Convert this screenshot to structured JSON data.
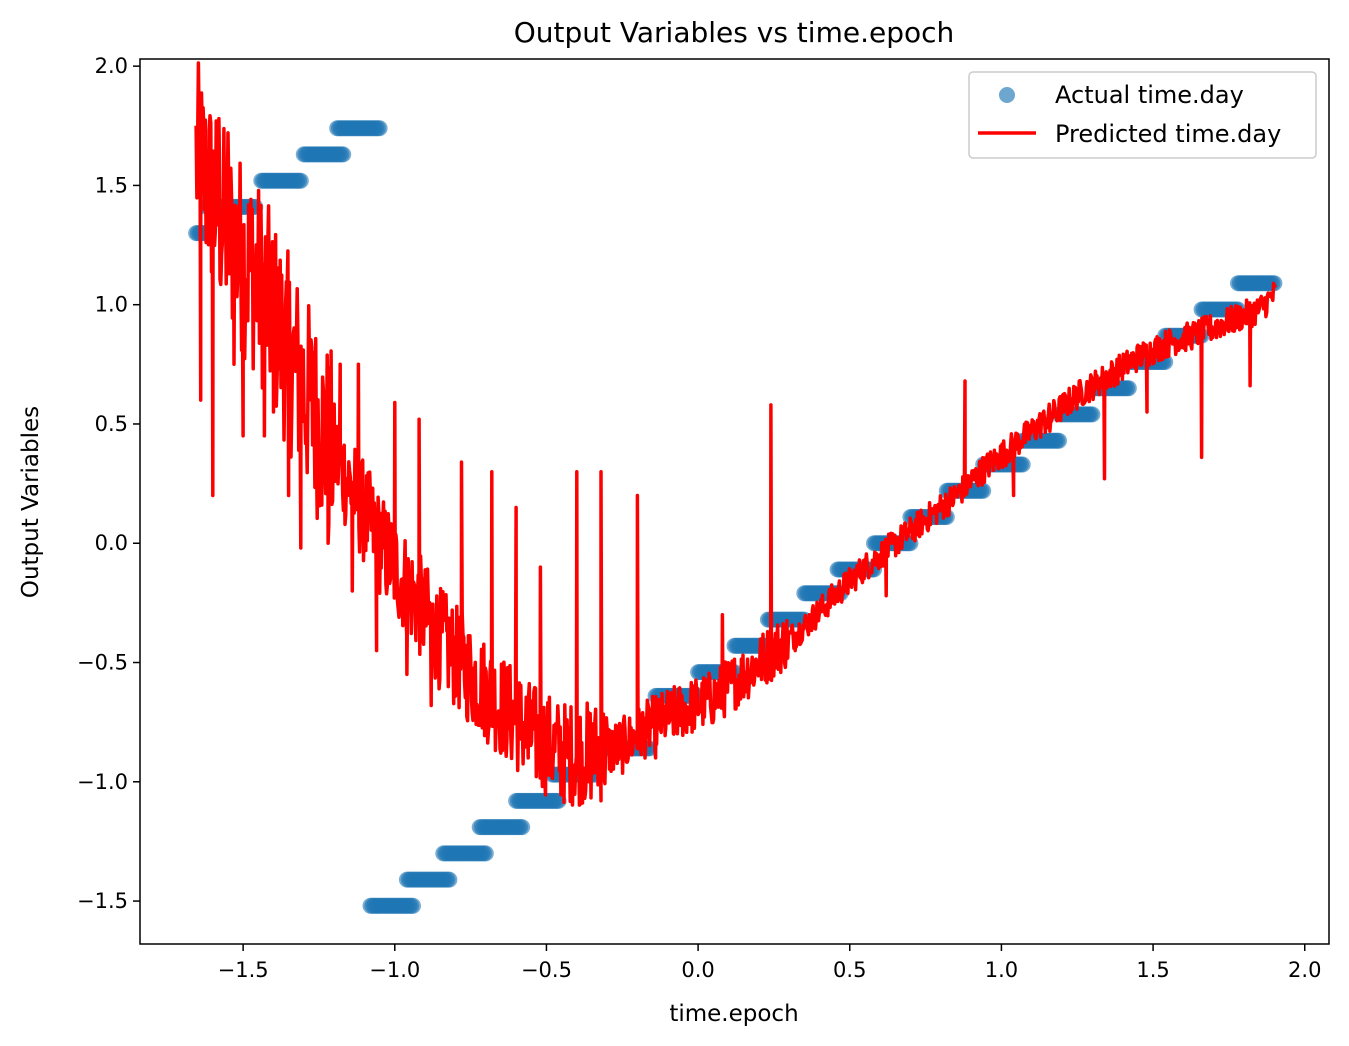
{
  "chart_data": {
    "type": "scatter",
    "title": "Output Variables vs time.epoch",
    "xlabel": "time.epoch",
    "ylabel": "Output Variables",
    "xlim": [
      -1.84,
      2.08
    ],
    "ylim": [
      -1.68,
      2.03
    ],
    "xticks": [
      -1.5,
      -1.0,
      -0.5,
      0.0,
      0.5,
      1.0,
      1.5,
      2.0
    ],
    "yticks": [
      -1.5,
      -1.0,
      -0.5,
      0.0,
      0.5,
      1.0,
      1.5,
      2.0
    ],
    "xtick_labels": [
      "−1.5",
      "−1.0",
      "−0.5",
      "0.0",
      "0.5",
      "1.0",
      "1.5",
      "2.0"
    ],
    "ytick_labels": [
      "−1.5",
      "−1.0",
      "−0.5",
      "0.0",
      "0.5",
      "1.0",
      "1.5",
      "2.0"
    ],
    "legend_position": "top-right",
    "grid": false,
    "series": [
      {
        "name": "Actual time.day",
        "kind": "scatter",
        "color": "#1f77b4",
        "segments": [
          {
            "x0": -1.655,
            "x1": -1.62,
            "y": 1.3
          },
          {
            "x0": -1.62,
            "x1": -1.46,
            "y": 1.41
          },
          {
            "x0": -1.44,
            "x1": -1.31,
            "y": 1.52
          },
          {
            "x0": -1.3,
            "x1": -1.17,
            "y": 1.63
          },
          {
            "x0": -1.19,
            "x1": -1.05,
            "y": 1.74
          },
          {
            "x0": -1.08,
            "x1": -0.94,
            "y": -1.52
          },
          {
            "x0": -0.96,
            "x1": -0.82,
            "y": -1.41
          },
          {
            "x0": -0.84,
            "x1": -0.7,
            "y": -1.3
          },
          {
            "x0": -0.72,
            "x1": -0.58,
            "y": -1.19
          },
          {
            "x0": -0.6,
            "x1": -0.46,
            "y": -1.08
          },
          {
            "x0": -0.48,
            "x1": -0.34,
            "y": -0.97
          },
          {
            "x0": -0.3,
            "x1": -0.16,
            "y": -0.86
          },
          {
            "x0": -0.14,
            "x1": 0.0,
            "y": -0.64
          },
          {
            "x0": 0.0,
            "x1": 0.12,
            "y": -0.54
          },
          {
            "x0": 0.12,
            "x1": 0.24,
            "y": -0.43
          },
          {
            "x0": 0.23,
            "x1": 0.35,
            "y": -0.32
          },
          {
            "x0": 0.35,
            "x1": 0.47,
            "y": -0.21
          },
          {
            "x0": 0.46,
            "x1": 0.58,
            "y": -0.11
          },
          {
            "x0": 0.58,
            "x1": 0.7,
            "y": 0.0
          },
          {
            "x0": 0.7,
            "x1": 0.82,
            "y": 0.11
          },
          {
            "x0": 0.82,
            "x1": 0.94,
            "y": 0.22
          },
          {
            "x0": 0.94,
            "x1": 1.07,
            "y": 0.33
          },
          {
            "x0": 1.07,
            "x1": 1.19,
            "y": 0.43
          },
          {
            "x0": 1.19,
            "x1": 1.3,
            "y": 0.54
          },
          {
            "x0": 1.3,
            "x1": 1.42,
            "y": 0.65
          },
          {
            "x0": 1.42,
            "x1": 1.54,
            "y": 0.76
          },
          {
            "x0": 1.54,
            "x1": 1.66,
            "y": 0.87
          },
          {
            "x0": 1.66,
            "x1": 1.78,
            "y": 0.98
          },
          {
            "x0": 1.78,
            "x1": 1.9,
            "y": 1.09
          }
        ]
      },
      {
        "name": "Predicted time.day",
        "kind": "line",
        "color": "#ff0000",
        "x_range": [
          -1.655,
          1.905
        ],
        "trend": [
          [
            -1.655,
            1.62
          ],
          [
            -1.55,
            1.3
          ],
          [
            -1.45,
            1.1
          ],
          [
            -1.35,
            0.8
          ],
          [
            -1.25,
            0.5
          ],
          [
            -1.15,
            0.25
          ],
          [
            -1.05,
            0.0
          ],
          [
            -0.95,
            -0.2
          ],
          [
            -0.85,
            -0.4
          ],
          [
            -0.75,
            -0.55
          ],
          [
            -0.65,
            -0.68
          ],
          [
            -0.55,
            -0.8
          ],
          [
            -0.45,
            -0.88
          ],
          [
            -0.35,
            -0.88
          ],
          [
            -0.25,
            -0.85
          ],
          [
            -0.15,
            -0.76
          ],
          [
            -0.05,
            -0.7
          ],
          [
            0.05,
            -0.65
          ],
          [
            0.15,
            -0.55
          ],
          [
            0.25,
            -0.45
          ],
          [
            0.35,
            -0.35
          ],
          [
            0.45,
            -0.22
          ],
          [
            0.55,
            -0.1
          ],
          [
            0.65,
            0.0
          ],
          [
            0.75,
            0.1
          ],
          [
            0.85,
            0.2
          ],
          [
            0.95,
            0.32
          ],
          [
            1.05,
            0.42
          ],
          [
            1.15,
            0.52
          ],
          [
            1.25,
            0.62
          ],
          [
            1.35,
            0.7
          ],
          [
            1.45,
            0.78
          ],
          [
            1.55,
            0.84
          ],
          [
            1.65,
            0.88
          ],
          [
            1.75,
            0.93
          ],
          [
            1.85,
            0.98
          ],
          [
            1.905,
            1.05
          ]
        ],
        "spikes": [
          [
            -1.64,
            0.6
          ],
          [
            -1.6,
            0.2
          ],
          [
            -1.58,
            1.78
          ],
          [
            -1.55,
            1.72
          ],
          [
            -1.53,
            0.75
          ],
          [
            -1.5,
            0.45
          ],
          [
            -1.47,
            1.4
          ],
          [
            -1.43,
            0.45
          ],
          [
            -1.4,
            0.55
          ],
          [
            -1.35,
            0.2
          ],
          [
            -1.31,
            -0.02
          ],
          [
            -1.27,
            0.8
          ],
          [
            -1.22,
            0.0
          ],
          [
            -1.18,
            0.75
          ],
          [
            -1.14,
            -0.2
          ],
          [
            -1.12,
            0.75
          ],
          [
            -1.06,
            -0.45
          ],
          [
            -1.0,
            0.59
          ],
          [
            -0.96,
            -0.55
          ],
          [
            -0.92,
            0.52
          ],
          [
            -0.88,
            -0.68
          ],
          [
            -0.78,
            0.34
          ],
          [
            -0.74,
            -0.72
          ],
          [
            -0.68,
            0.3
          ],
          [
            -0.6,
            0.15
          ],
          [
            -0.56,
            -0.9
          ],
          [
            -0.52,
            -0.1
          ],
          [
            -0.4,
            0.3
          ],
          [
            -0.36,
            -1.0
          ],
          [
            -0.32,
            0.3
          ],
          [
            -0.28,
            -0.9
          ],
          [
            -0.2,
            0.2
          ],
          [
            -0.14,
            -0.9
          ],
          [
            -0.08,
            -0.8
          ],
          [
            0.08,
            -0.3
          ],
          [
            0.24,
            0.58
          ],
          [
            0.32,
            -0.45
          ],
          [
            0.62,
            -0.22
          ],
          [
            0.88,
            0.68
          ],
          [
            1.04,
            0.2
          ],
          [
            1.16,
            0.47
          ],
          [
            1.34,
            0.27
          ],
          [
            1.48,
            0.55
          ],
          [
            1.66,
            0.36
          ],
          [
            1.82,
            0.66
          ]
        ]
      }
    ]
  }
}
